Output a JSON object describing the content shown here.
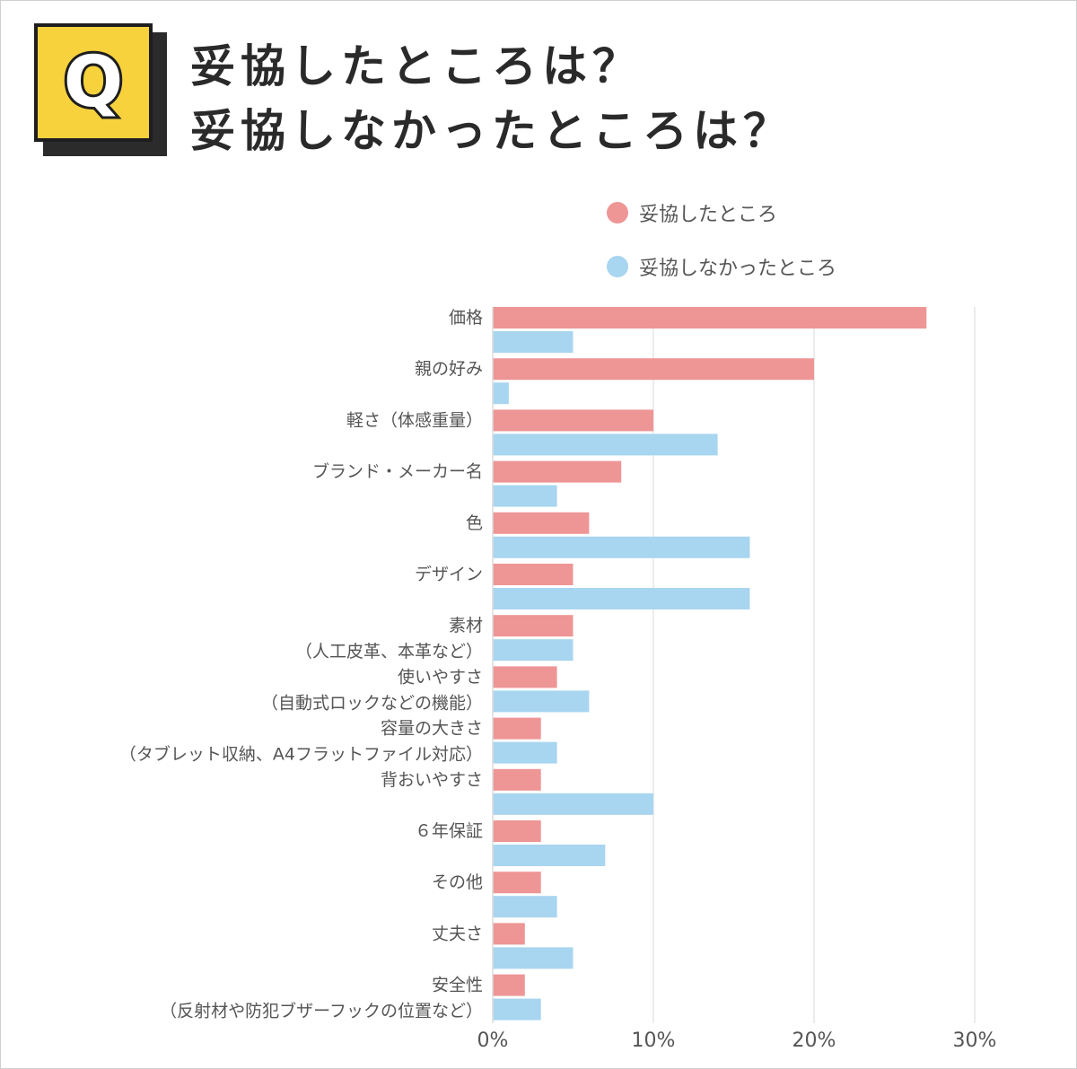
{
  "badge": {
    "letter": "Q"
  },
  "title": {
    "line1": "妥協したところは？",
    "line2": "妥協しなかったところは？"
  },
  "colors": {
    "series1": "#ee9596",
    "series2": "#a8d5ef",
    "grid": "#e6e6e6",
    "badge": "#f7d23d"
  },
  "chart_data": {
    "type": "bar",
    "orientation": "horizontal",
    "legend_position": "top-right",
    "grid": true,
    "xlim": [
      0,
      30
    ],
    "ticks": [
      "0%",
      "10%",
      "20%",
      "30%"
    ],
    "tick_values": [
      0,
      10,
      20,
      30
    ],
    "categories": [
      [
        "価格"
      ],
      [
        "親の好み"
      ],
      [
        "軽さ（体感重量）"
      ],
      [
        "ブランド・メーカー名"
      ],
      [
        "色"
      ],
      [
        "デザイン"
      ],
      [
        "素材",
        "（人工皮革、本革など）"
      ],
      [
        "使いやすさ",
        "（自動式ロックなどの機能）"
      ],
      [
        "容量の大きさ",
        "（タブレット収納、A4フラットファイル対応）"
      ],
      [
        "背おいやすさ"
      ],
      [
        "６年保証"
      ],
      [
        "その他"
      ],
      [
        "丈夫さ"
      ],
      [
        "安全性",
        "（反射材や防犯ブザーフックの位置など）"
      ]
    ],
    "series": [
      {
        "name": "妥協したところ",
        "values": [
          27,
          20,
          10,
          8,
          6,
          5,
          5,
          4,
          3,
          3,
          3,
          3,
          2,
          2
        ]
      },
      {
        "name": "妥協しなかったところ",
        "values": [
          5,
          1,
          14,
          4,
          16,
          16,
          5,
          6,
          4,
          10,
          7,
          4,
          5,
          3
        ]
      }
    ]
  }
}
